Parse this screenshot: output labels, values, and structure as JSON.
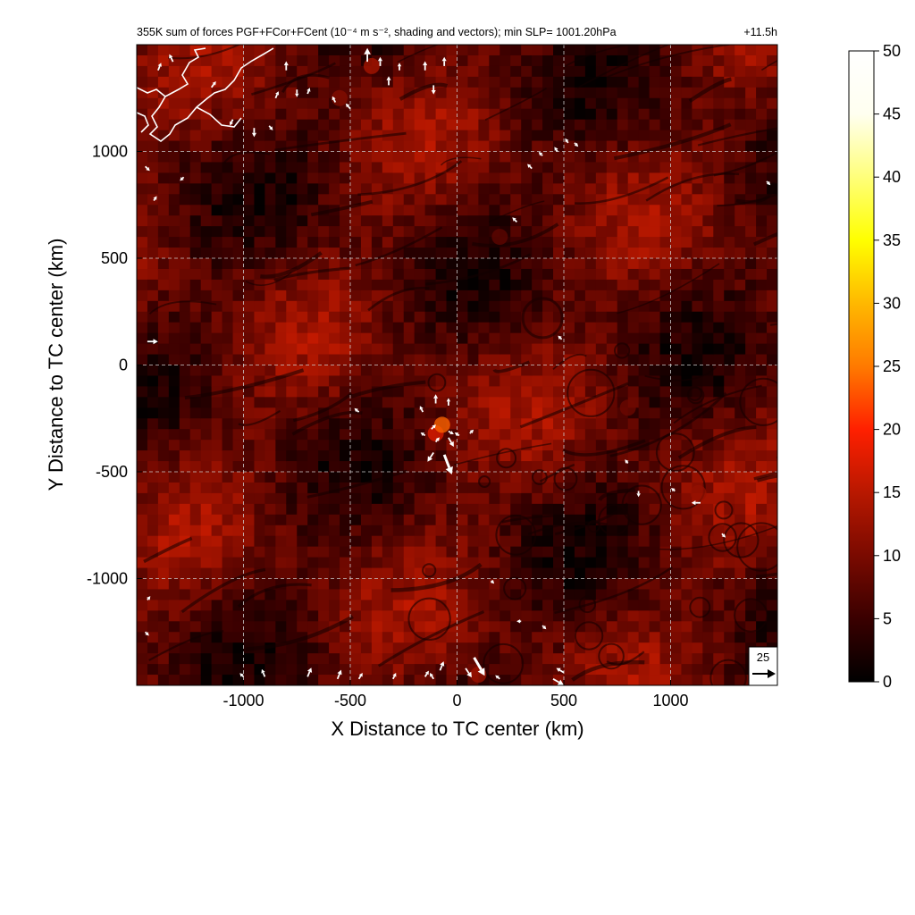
{
  "chart_data": {
    "type": "heatmap",
    "title": "355K sum of forces PGF+FCor+FCent (10⁻⁴ m s⁻², shading and vectors); min SLP= 1001.20hPa",
    "time_label": "+11.5h",
    "xlabel": "X Distance to TC center (km)",
    "ylabel": "Y Distance to TC center (km)",
    "xlim": [
      -1500,
      1500
    ],
    "ylim": [
      -1500,
      1500
    ],
    "x_ticks": [
      -1000,
      -500,
      0,
      500,
      1000
    ],
    "y_ticks": [
      -1000,
      -500,
      0,
      500,
      1000
    ],
    "x_tick_labels": [
      "-1000",
      "-500",
      "0",
      "500",
      "1000"
    ],
    "y_tick_labels": [
      "-1000",
      "-500",
      "0",
      "500",
      "1000"
    ],
    "grid": true,
    "colorbar": {
      "range": [
        0,
        50
      ],
      "ticks": [
        0,
        5,
        10,
        15,
        20,
        25,
        30,
        35,
        40,
        45,
        50
      ],
      "tick_labels": [
        "0",
        "5",
        "10",
        "15",
        "20",
        "25",
        "30",
        "35",
        "40",
        "45",
        "50"
      ],
      "colors": [
        "#000000",
        "#3a0000",
        "#7a0a00",
        "#b81800",
        "#ff2000",
        "#ff7a00",
        "#ffb800",
        "#ffff00",
        "#ffff7a",
        "#fffff0",
        "#ffffff"
      ]
    },
    "reference_vector": {
      "label": "25",
      "value": 25
    },
    "hotspots": [
      {
        "x": -400,
        "y": 1400,
        "v": 14
      },
      {
        "x": -550,
        "y": 1250,
        "v": 11
      },
      {
        "x": -100,
        "y": -320,
        "v": 18
      },
      {
        "x": -70,
        "y": -280,
        "v": 24
      },
      {
        "x": 100,
        "y": -1450,
        "v": 13
      },
      {
        "x": 1130,
        "y": -600,
        "v": 12
      },
      {
        "x": 200,
        "y": 600,
        "v": 8
      },
      {
        "x": 800,
        "y": -200,
        "v": 9
      }
    ],
    "vectors": [
      {
        "x": -1400,
        "y": 1380,
        "u": 4,
        "v": 10
      },
      {
        "x": -1330,
        "y": 1420,
        "u": -5,
        "v": 10
      },
      {
        "x": -1150,
        "y": 1300,
        "u": 6,
        "v": 8
      },
      {
        "x": -1050,
        "y": 1150,
        "u": -4,
        "v": -8
      },
      {
        "x": -950,
        "y": 1110,
        "u": 0,
        "v": -12
      },
      {
        "x": -880,
        "y": 1120,
        "u": 5,
        "v": -6
      },
      {
        "x": -850,
        "y": 1250,
        "u": 4,
        "v": 9
      },
      {
        "x": -800,
        "y": 1380,
        "u": 0,
        "v": 12
      },
      {
        "x": -750,
        "y": 1290,
        "u": 0,
        "v": -10
      },
      {
        "x": -700,
        "y": 1270,
        "u": 3,
        "v": 8
      },
      {
        "x": -570,
        "y": 1230,
        "u": -4,
        "v": 8
      },
      {
        "x": -500,
        "y": 1200,
        "u": -6,
        "v": 7
      },
      {
        "x": -420,
        "y": 1420,
        "u": 0,
        "v": 18
      },
      {
        "x": -360,
        "y": 1400,
        "u": 0,
        "v": 12
      },
      {
        "x": -320,
        "y": 1310,
        "u": 0,
        "v": 12
      },
      {
        "x": -270,
        "y": 1380,
        "u": 0,
        "v": 10
      },
      {
        "x": -150,
        "y": 1380,
        "u": 0,
        "v": 12
      },
      {
        "x": -110,
        "y": 1310,
        "u": 0,
        "v": -12
      },
      {
        "x": -60,
        "y": 1400,
        "u": 0,
        "v": 12
      },
      {
        "x": -1460,
        "y": 930,
        "u": 6,
        "v": -6
      },
      {
        "x": -1420,
        "y": 770,
        "u": 4,
        "v": 6
      },
      {
        "x": -1280,
        "y": 880,
        "u": -5,
        "v": -5
      },
      {
        "x": 350,
        "y": 920,
        "u": -6,
        "v": 6
      },
      {
        "x": 400,
        "y": 980,
        "u": -5,
        "v": 5
      },
      {
        "x": 470,
        "y": 1000,
        "u": -4,
        "v": 6
      },
      {
        "x": 520,
        "y": 1040,
        "u": -4,
        "v": 6
      },
      {
        "x": 550,
        "y": 1040,
        "u": 5,
        "v": -5
      },
      {
        "x": 1450,
        "y": 860,
        "u": 5,
        "v": -5
      },
      {
        "x": 280,
        "y": 670,
        "u": -6,
        "v": 6
      },
      {
        "x": -1450,
        "y": 110,
        "u": 14,
        "v": 0
      },
      {
        "x": 490,
        "y": 120,
        "u": -5,
        "v": 5
      },
      {
        "x": -460,
        "y": -220,
        "u": -6,
        "v": 5
      },
      {
        "x": -160,
        "y": -220,
        "u": -4,
        "v": 8
      },
      {
        "x": -100,
        "y": -180,
        "u": 0,
        "v": 12
      },
      {
        "x": -40,
        "y": -190,
        "u": 0,
        "v": 10
      },
      {
        "x": -150,
        "y": -330,
        "u": -6,
        "v": 4
      },
      {
        "x": -120,
        "y": -300,
        "u": 6,
        "v": 6
      },
      {
        "x": -100,
        "y": -360,
        "u": 5,
        "v": 6
      },
      {
        "x": -40,
        "y": -310,
        "u": 7,
        "v": -4
      },
      {
        "x": 10,
        "y": -330,
        "u": -6,
        "v": 4
      },
      {
        "x": 60,
        "y": -320,
        "u": 5,
        "v": 5
      },
      {
        "x": -110,
        "y": -410,
        "u": -8,
        "v": -12
      },
      {
        "x": -60,
        "y": -420,
        "u": 10,
        "v": -26
      },
      {
        "x": -40,
        "y": -340,
        "u": 7,
        "v": -12
      },
      {
        "x": 800,
        "y": -460,
        "u": -4,
        "v": 5
      },
      {
        "x": 850,
        "y": -590,
        "u": 0,
        "v": -8
      },
      {
        "x": 1020,
        "y": -590,
        "u": -5,
        "v": 4
      },
      {
        "x": 1140,
        "y": -645,
        "u": -12,
        "v": 0
      },
      {
        "x": 1240,
        "y": -790,
        "u": 5,
        "v": -5
      },
      {
        "x": 160,
        "y": -1010,
        "u": 4,
        "v": -4
      },
      {
        "x": 300,
        "y": -1200,
        "u": -6,
        "v": 0
      },
      {
        "x": 400,
        "y": -1220,
        "u": 5,
        "v": -5
      },
      {
        "x": -1450,
        "y": -1100,
        "u": 4,
        "v": 5
      },
      {
        "x": -1460,
        "y": -1250,
        "u": 5,
        "v": -5
      },
      {
        "x": -1000,
        "y": -1460,
        "u": -5,
        "v": 5
      },
      {
        "x": -900,
        "y": -1460,
        "u": -4,
        "v": 10
      },
      {
        "x": -700,
        "y": -1460,
        "u": 5,
        "v": 12
      },
      {
        "x": -560,
        "y": -1470,
        "u": 5,
        "v": 12
      },
      {
        "x": -460,
        "y": -1470,
        "u": 5,
        "v": 8
      },
      {
        "x": -300,
        "y": -1470,
        "u": 4,
        "v": 8
      },
      {
        "x": -150,
        "y": -1460,
        "u": 5,
        "v": 8
      },
      {
        "x": -110,
        "y": -1470,
        "u": -5,
        "v": 8
      },
      {
        "x": -80,
        "y": -1430,
        "u": 5,
        "v": 12
      },
      {
        "x": 40,
        "y": -1420,
        "u": 8,
        "v": -12
      },
      {
        "x": 80,
        "y": -1370,
        "u": 14,
        "v": -24
      },
      {
        "x": 200,
        "y": -1470,
        "u": -6,
        "v": 5
      },
      {
        "x": 450,
        "y": -1470,
        "u": 14,
        "v": -8
      },
      {
        "x": 500,
        "y": -1440,
        "u": -10,
        "v": 6
      }
    ],
    "coastline_label": "coastline (white contour)"
  }
}
